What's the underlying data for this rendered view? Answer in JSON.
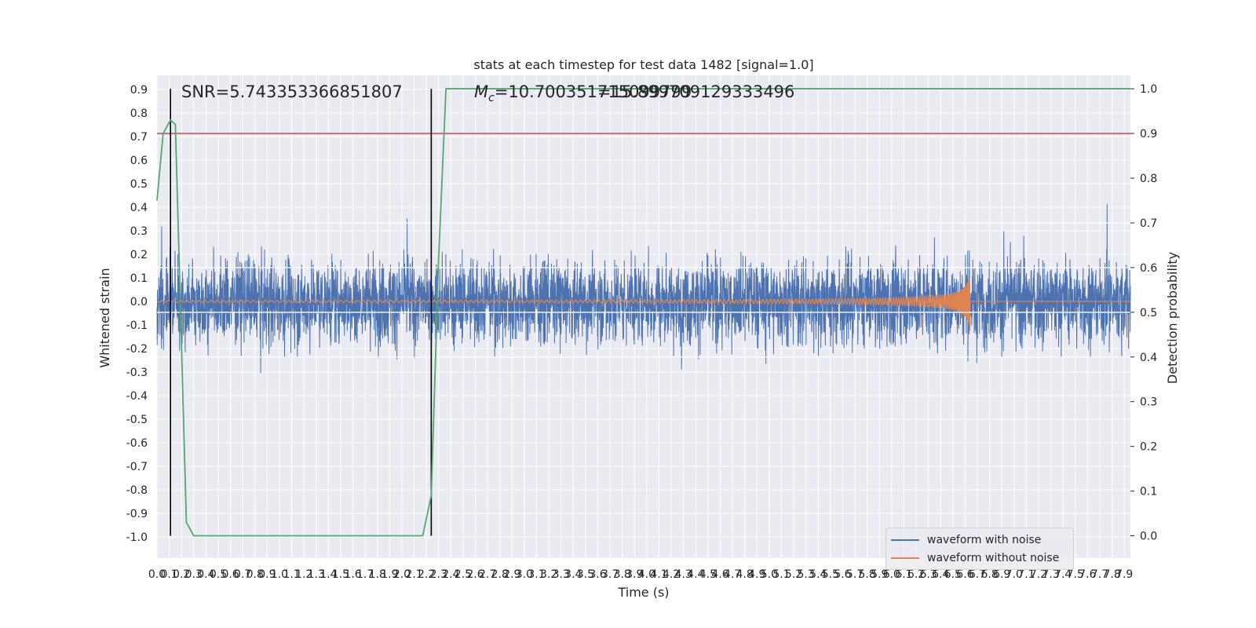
{
  "chart_data": {
    "type": "line",
    "title": "stats at each timestep for test data 1482 [signal=1.0]",
    "xlabel": "Time (s)",
    "ylabel_left": "Whitened strain",
    "ylabel_right": "Detection probability",
    "xlim": [
      0.0,
      7.95
    ],
    "ylim_left": [
      -1.09,
      0.96
    ],
    "ylim_right": [
      -0.05,
      1.03
    ],
    "x_ticks": [
      "0.0",
      "0.1",
      "0.2",
      "0.3",
      "0.4",
      "0.5",
      "0.6",
      "0.7",
      "0.8",
      "0.9",
      "1.0",
      "1.1",
      "1.2",
      "1.3",
      "1.4",
      "1.5",
      "1.6",
      "1.7",
      "1.8",
      "1.9",
      "2.0",
      "2.1",
      "2.2",
      "2.3",
      "2.4",
      "2.5",
      "2.6",
      "2.7",
      "2.8",
      "2.9",
      "3.0",
      "3.1",
      "3.2",
      "3.3",
      "3.4",
      "3.5",
      "3.6",
      "3.7",
      "3.8",
      "3.9",
      "4.0",
      "4.1",
      "4.2",
      "4.3",
      "4.4",
      "4.5",
      "4.6",
      "4.7",
      "4.8",
      "4.9",
      "5.0",
      "5.1",
      "5.2",
      "5.3",
      "5.4",
      "5.5",
      "5.6",
      "5.7",
      "5.8",
      "5.9",
      "6.0",
      "6.1",
      "6.2",
      "6.3",
      "6.4",
      "6.5",
      "6.6",
      "6.7",
      "6.8",
      "6.9",
      "7.0",
      "7.1",
      "7.2",
      "7.3",
      "7.4",
      "7.5",
      "7.6",
      "7.7",
      "7.8",
      "7.9"
    ],
    "y_ticks_left": [
      "0.9",
      "0.8",
      "0.7",
      "0.6",
      "0.5",
      "0.4",
      "0.3",
      "0.2",
      "0.1",
      "0.0",
      "-0.1",
      "-0.2",
      "-0.3",
      "-0.4",
      "-0.5",
      "-0.6",
      "-0.7",
      "-0.8",
      "-0.9",
      "-1.0"
    ],
    "y_ticks_right": [
      "1.0",
      "0.9",
      "0.8",
      "0.7",
      "0.6",
      "0.5",
      "0.4",
      "0.3",
      "0.2",
      "0.1",
      "0.0"
    ],
    "annotations": {
      "snr": "SNR=5.743353366851807",
      "mc_prefix": "M",
      "mc_subscript": "c",
      "mc_value": "=10.700351715099799",
      "mc_overlap": "=15.899709129333496"
    },
    "threshold_probability": 0.9,
    "vertical_markers_s": [
      0.11,
      2.24
    ],
    "chirp_end_s": 6.64,
    "series": [
      {
        "name": "waveform with noise",
        "color": "#4c72b0",
        "axis": "left",
        "noise_amplitude": 0.3
      },
      {
        "name": "waveform without noise",
        "color": "#dd8452",
        "axis": "left",
        "chirp_peak_amplitude": 0.16
      },
      {
        "name": "detection probability",
        "color": "#55a868",
        "axis": "right",
        "x": [
          0.0,
          0.05,
          0.11,
          0.15,
          0.24,
          0.3,
          0.4,
          1.0,
          1.5,
          2.0,
          2.17,
          2.24,
          2.3,
          2.36,
          3.0,
          5.0,
          7.0,
          7.95
        ],
        "values": [
          0.75,
          0.9,
          0.93,
          0.92,
          0.03,
          0.0,
          0.0,
          0.0,
          0.0,
          0.0,
          0.0,
          0.09,
          0.62,
          1.0,
          1.0,
          1.0,
          1.0,
          1.0
        ]
      }
    ],
    "horizontal_lines_right": [
      0.9,
      0.7,
      0.6,
      0.5,
      0.4
    ],
    "legend": {
      "placement": "lower-right"
    },
    "grid": true
  },
  "colors": {
    "threshold": "#c44e52",
    "marker": "#000000",
    "axes_bg": "#eaeaf2",
    "grid": "#ffffff"
  }
}
